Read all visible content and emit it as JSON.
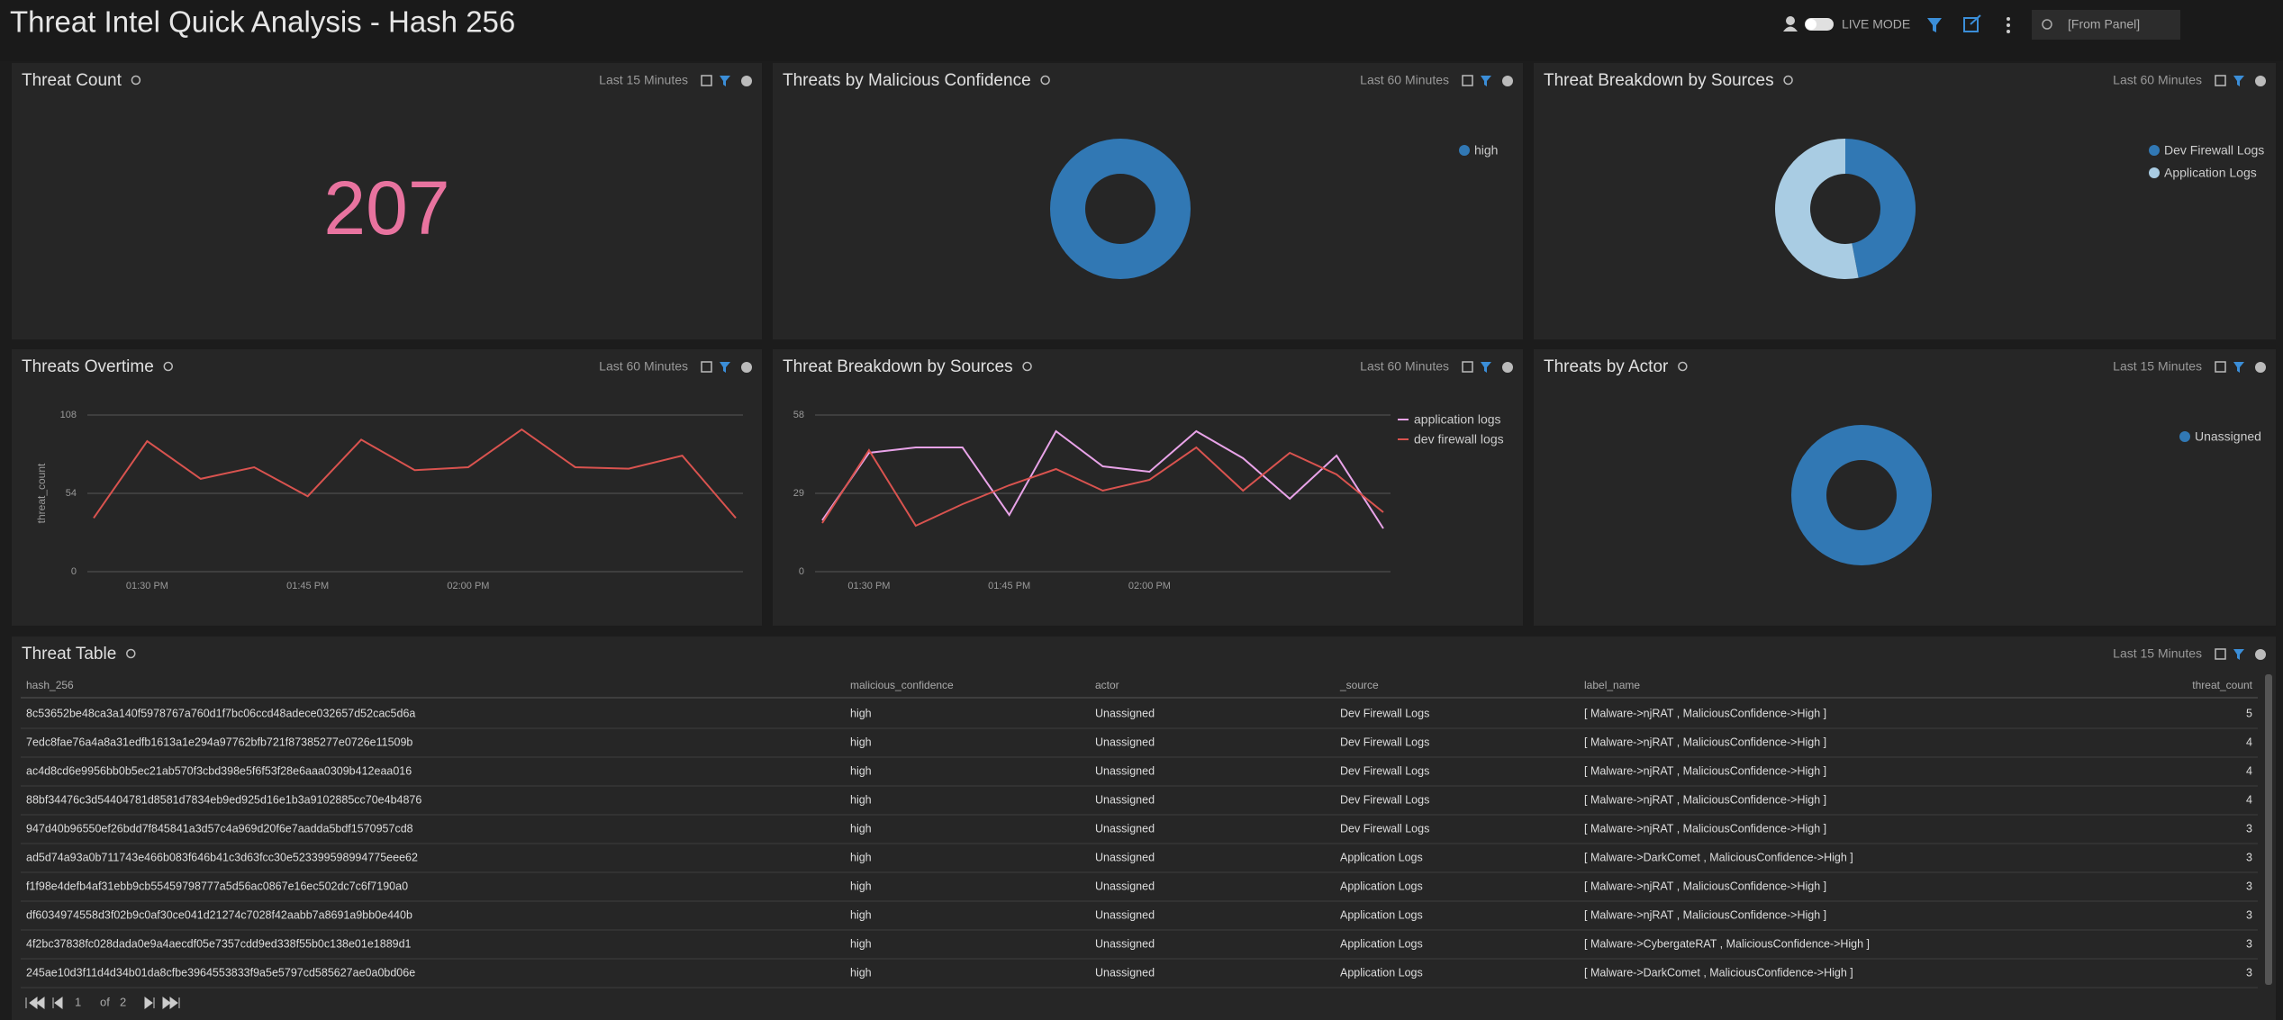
{
  "header": {
    "title": "Threat Intel Quick Analysis - Hash 256",
    "live_mode": "LIVE MODE",
    "time_picker": "[From Panel]"
  },
  "chart_data": [
    {
      "type": "number",
      "title": "Threat Count",
      "time_range": "Last 15 Minutes",
      "value": 207,
      "color": "#e8739f"
    },
    {
      "type": "pie",
      "title": "Threats by Malicious Confidence",
      "time_range": "Last 60 Minutes",
      "categories": [
        "high"
      ],
      "values": [
        100
      ],
      "colors": [
        "#3178b4"
      ]
    },
    {
      "type": "pie",
      "title": "Threat Breakdown by Sources",
      "time_range": "Last 60 Minutes",
      "categories": [
        "Dev Firewall Logs",
        "Application Logs"
      ],
      "values": [
        47,
        53
      ],
      "colors": [
        "#3178b4",
        "#a9cce3"
      ]
    },
    {
      "type": "line",
      "title": "Threats Overtime",
      "time_range": "Last 60 Minutes",
      "y_label": "threat_count",
      "x": [
        null,
        "01:30 PM",
        null,
        null,
        "01:45 PM",
        null,
        null,
        "02:00 PM",
        null,
        null,
        null,
        null,
        null
      ],
      "values": [
        37,
        90,
        64,
        72,
        52,
        91,
        70,
        72,
        98,
        72,
        71,
        80,
        37
      ],
      "color": "#d9534f",
      "ylim": [
        0,
        108
      ],
      "yticks": [
        0,
        54,
        108
      ],
      "grid": true
    },
    {
      "type": "line",
      "title": "Threat Breakdown by Sources",
      "time_range": "Last 60 Minutes",
      "x": [
        null,
        "01:30 PM",
        null,
        null,
        "01:45 PM",
        null,
        null,
        "02:00 PM",
        null,
        null,
        null,
        null,
        null
      ],
      "series": [
        {
          "name": "application logs",
          "color": "#e8a3e8",
          "values": [
            19,
            44,
            46,
            46,
            21,
            52,
            39,
            37,
            52,
            42,
            27,
            43,
            16
          ]
        },
        {
          "name": "dev firewall logs",
          "color": "#d9534f",
          "values": [
            18,
            45,
            17,
            25,
            32,
            38,
            30,
            34,
            46,
            30,
            44,
            36,
            22
          ]
        }
      ],
      "ylim": [
        0,
        58
      ],
      "yticks": [
        0,
        29,
        58
      ],
      "grid": true
    },
    {
      "type": "pie",
      "title": "Threats by Actor",
      "time_range": "Last 15 Minutes",
      "categories": [
        "Unassigned"
      ],
      "values": [
        100
      ],
      "colors": [
        "#3178b4"
      ]
    }
  ],
  "table": {
    "title": "Threat Table",
    "time_range": "Last 15 Minutes",
    "columns": [
      "hash_256",
      "malicious_confidence",
      "actor",
      "_source",
      "label_name",
      "threat_count"
    ],
    "rows": [
      [
        "8c53652be48ca3a140f5978767a760d1f7bc06ccd48adece032657d52cac5d6a",
        "high",
        "Unassigned",
        "Dev Firewall Logs",
        "[ Malware->njRAT , MaliciousConfidence->High ]",
        5
      ],
      [
        "7edc8fae76a4a8a31edfb1613a1e294a97762bfb721f87385277e0726e11509b",
        "high",
        "Unassigned",
        "Dev Firewall Logs",
        "[ Malware->njRAT , MaliciousConfidence->High ]",
        4
      ],
      [
        "ac4d8cd6e9956bb0b5ec21ab570f3cbd398e5f6f53f28e6aaa0309b412eaa016",
        "high",
        "Unassigned",
        "Dev Firewall Logs",
        "[ Malware->njRAT , MaliciousConfidence->High ]",
        4
      ],
      [
        "88bf34476c3d54404781d8581d7834eb9ed925d16e1b3a9102885cc70e4b4876",
        "high",
        "Unassigned",
        "Dev Firewall Logs",
        "[ Malware->njRAT , MaliciousConfidence->High ]",
        4
      ],
      [
        "947d40b96550ef26bdd7f845841a3d57c4a969d20f6e7aadda5bdf1570957cd8",
        "high",
        "Unassigned",
        "Dev Firewall Logs",
        "[ Malware->njRAT , MaliciousConfidence->High ]",
        3
      ],
      [
        "ad5d74a93a0b711743e466b083f646b41c3d63fcc30e523399598994775eee62",
        "high",
        "Unassigned",
        "Application Logs",
        "[ Malware->DarkComet , MaliciousConfidence->High ]",
        3
      ],
      [
        "f1f98e4defb4af31ebb9cb55459798777a5d56ac0867e16ec502dc7c6f7190a0",
        "high",
        "Unassigned",
        "Application Logs",
        "[ Malware->njRAT , MaliciousConfidence->High ]",
        3
      ],
      [
        "df6034974558d3f02b9c0af30ce041d21274c7028f42aabb7a8691a9bb0e440b",
        "high",
        "Unassigned",
        "Application Logs",
        "[ Malware->njRAT , MaliciousConfidence->High ]",
        3
      ],
      [
        "4f2bc37838fc028dada0e9a4aecdf05e7357cdd9ed338f55b0c138e01e1889d1",
        "high",
        "Unassigned",
        "Application Logs",
        "[ Malware->CybergateRAT , MaliciousConfidence->High ]",
        3
      ],
      [
        "245ae10d3f11d4d34b01da8cfbe3964553833f9a5e5797cd585627ae0a0bd06e",
        "high",
        "Unassigned",
        "Application Logs",
        "[ Malware->DarkComet , MaliciousConfidence->High ]",
        3
      ]
    ],
    "pagination": {
      "page": 1,
      "of": "of",
      "pages": 2
    }
  }
}
